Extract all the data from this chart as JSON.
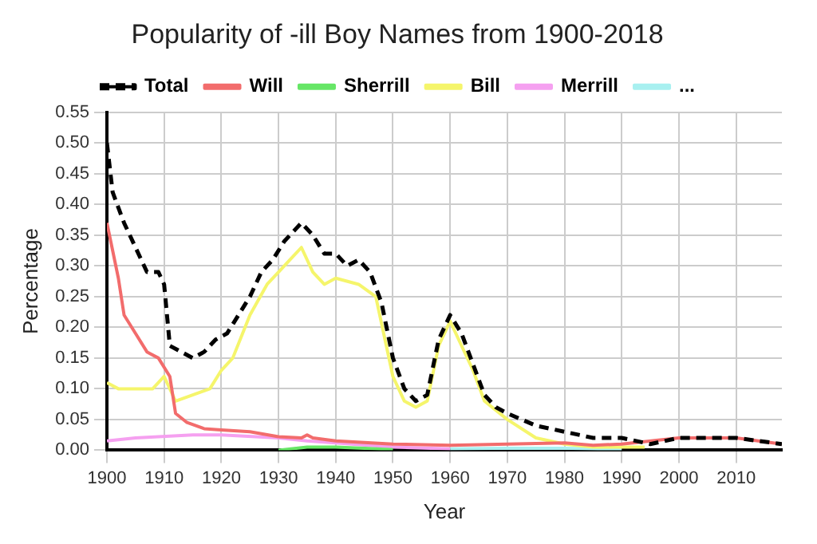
{
  "chart_data": {
    "type": "line",
    "title": "Popularity of -ill Boy Names from 1900-2018",
    "xlabel": "Year",
    "ylabel": "Percentage",
    "xlim": [
      1900,
      2018
    ],
    "xticks": [
      1900,
      1910,
      1920,
      1930,
      1940,
      1950,
      1960,
      1970,
      1980,
      1990,
      2000,
      2010
    ],
    "ylim": [
      0,
      0.55
    ],
    "yticks": [
      {
        "value": 0,
        "label": "0.00"
      },
      {
        "value": 0.05,
        "label": "0.05"
      },
      {
        "value": 0.1,
        "label": "0.10"
      },
      {
        "value": 0.15,
        "label": "0.15"
      },
      {
        "value": 0.2,
        "label": "0.20"
      },
      {
        "value": 0.25,
        "label": "0.25"
      },
      {
        "value": 0.3,
        "label": "0.30"
      },
      {
        "value": 0.35,
        "label": "0.35"
      },
      {
        "value": 0.4,
        "label": "0.40"
      },
      {
        "value": 0.45,
        "label": "0.45"
      },
      {
        "value": 0.5,
        "label": "0.50"
      },
      {
        "value": 0.55,
        "label": "0.55"
      }
    ],
    "grid": true,
    "legend": "top",
    "marker": "none",
    "series": [
      {
        "name": "Total",
        "color": "#000000",
        "line_style": "dashed",
        "x": [
          1900,
          1901,
          1903,
          1905,
          1907,
          1909,
          1910,
          1911,
          1913,
          1915,
          1917,
          1919,
          1921,
          1923,
          1925,
          1927,
          1929,
          1931,
          1933,
          1934,
          1936,
          1938,
          1940,
          1942,
          1944,
          1946,
          1948,
          1950,
          1952,
          1954,
          1956,
          1958,
          1960,
          1962,
          1964,
          1966,
          1968,
          1970,
          1975,
          1980,
          1985,
          1990,
          1995,
          2000,
          2005,
          2010,
          2018
        ],
        "values": [
          0.5,
          0.42,
          0.37,
          0.33,
          0.29,
          0.29,
          0.27,
          0.17,
          0.16,
          0.15,
          0.16,
          0.18,
          0.19,
          0.22,
          0.25,
          0.29,
          0.31,
          0.34,
          0.36,
          0.37,
          0.35,
          0.32,
          0.32,
          0.3,
          0.31,
          0.29,
          0.24,
          0.15,
          0.1,
          0.08,
          0.09,
          0.18,
          0.22,
          0.19,
          0.14,
          0.09,
          0.07,
          0.06,
          0.04,
          0.03,
          0.02,
          0.02,
          0.01,
          0.02,
          0.02,
          0.02,
          0.01
        ]
      },
      {
        "name": "Will",
        "color": "#f26c6c",
        "line_style": "solid",
        "x": [
          1900,
          1902,
          1903,
          1905,
          1907,
          1909,
          1911,
          1912,
          1914,
          1917,
          1920,
          1925,
          1930,
          1934,
          1935,
          1936,
          1940,
          1950,
          1960,
          1970,
          1980,
          1985,
          1990,
          2000,
          2005,
          2010,
          2018
        ],
        "values": [
          0.37,
          0.28,
          0.22,
          0.19,
          0.16,
          0.15,
          0.12,
          0.06,
          0.045,
          0.035,
          0.033,
          0.03,
          0.022,
          0.02,
          0.025,
          0.02,
          0.015,
          0.01,
          0.008,
          0.01,
          0.012,
          0.008,
          0.01,
          0.02,
          0.02,
          0.02,
          0.01
        ]
      },
      {
        "name": "Sherrill",
        "color": "#66e666",
        "line_style": "solid",
        "x": [
          1930,
          1935,
          1940,
          1945,
          1950
        ],
        "values": [
          0,
          0.005,
          0.005,
          0.003,
          0.001
        ]
      },
      {
        "name": "Bill",
        "color": "#f5f56b",
        "line_style": "solid",
        "x": [
          1900,
          1902,
          1905,
          1908,
          1910,
          1912,
          1915,
          1918,
          1920,
          1922,
          1925,
          1928,
          1930,
          1932,
          1934,
          1936,
          1938,
          1940,
          1944,
          1947,
          1950,
          1952,
          1954,
          1956,
          1958,
          1960,
          1962,
          1964,
          1966,
          1970,
          1975,
          1980,
          1985,
          1994
        ],
        "values": [
          0.11,
          0.1,
          0.1,
          0.1,
          0.12,
          0.08,
          0.09,
          0.1,
          0.13,
          0.15,
          0.22,
          0.27,
          0.29,
          0.31,
          0.33,
          0.29,
          0.27,
          0.28,
          0.27,
          0.25,
          0.12,
          0.08,
          0.07,
          0.08,
          0.17,
          0.21,
          0.17,
          0.13,
          0.08,
          0.05,
          0.02,
          0.01,
          0.005,
          0.005
        ]
      },
      {
        "name": "Merrill",
        "color": "#f5a0f0",
        "line_style": "solid",
        "x": [
          1900,
          1905,
          1915,
          1920,
          1930,
          1935,
          1940,
          1950,
          1960
        ],
        "values": [
          0.015,
          0.02,
          0.025,
          0.025,
          0.02,
          0.015,
          0.012,
          0.005,
          0.002
        ]
      },
      {
        "name": "...",
        "color": "#a8f0f0",
        "line_style": "solid",
        "x": [
          1960,
          1970,
          1975,
          1980,
          1990
        ],
        "values": [
          0.002,
          0.003,
          0.003,
          0.003,
          0.001
        ]
      }
    ]
  }
}
